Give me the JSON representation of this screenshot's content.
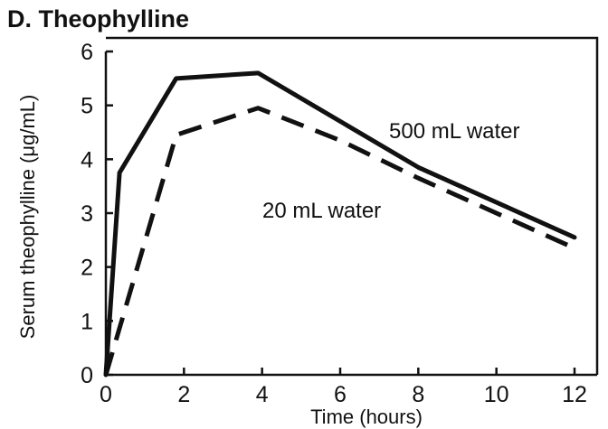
{
  "chart_data": {
    "type": "line",
    "title": "D. Theophylline",
    "xlabel": "Time (hours)",
    "ylabel": "Serum theophylline (μg/mL)",
    "xlim": [
      0,
      12
    ],
    "ylim": [
      0,
      6
    ],
    "xticks": [
      0,
      2,
      4,
      6,
      8,
      10,
      12
    ],
    "yticks": [
      0,
      1,
      2,
      3,
      4,
      5,
      6
    ],
    "grid": false,
    "series": [
      {
        "name": "500 mL water",
        "style": "solid",
        "color": "#111111",
        "x": [
          0,
          0.35,
          1.8,
          3.9,
          8,
          12
        ],
        "y": [
          0,
          3.75,
          5.5,
          5.6,
          3.85,
          2.55
        ]
      },
      {
        "name": "20 mL water",
        "style": "dashed",
        "color": "#111111",
        "x": [
          0,
          1.8,
          3.9,
          6,
          8,
          12
        ],
        "y": [
          0,
          4.45,
          4.95,
          4.35,
          3.65,
          2.35
        ]
      }
    ]
  }
}
